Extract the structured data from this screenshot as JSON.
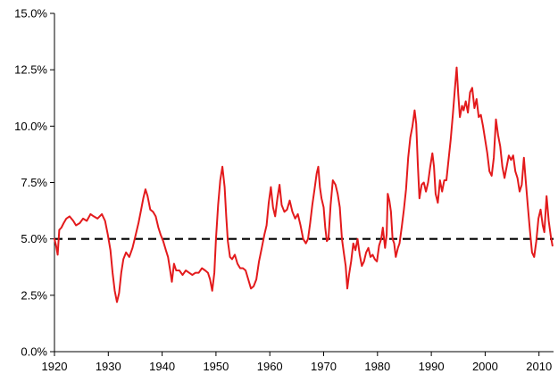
{
  "chart_data": {
    "type": "line",
    "title": "",
    "xlabel": "",
    "ylabel": "",
    "xlim": [
      1920,
      2012.7
    ],
    "ylim": [
      0,
      15
    ],
    "grid": false,
    "legend": "none",
    "x_ticks": [
      1920,
      1930,
      1940,
      1950,
      1960,
      1970,
      1980,
      1990,
      2000,
      2010
    ],
    "x_tick_labels": [
      "1920",
      "1930",
      "1940",
      "1950",
      "1960",
      "1970",
      "1980",
      "1990",
      "2000",
      "2010"
    ],
    "y_ticks": [
      0,
      2.5,
      5,
      7.5,
      10,
      12.5,
      15
    ],
    "y_tick_labels": [
      "0.0%",
      "2.5%",
      "5.0%",
      "7.5%",
      "10.0%",
      "12.5%",
      "15.0%"
    ],
    "reference_line": {
      "y": 5.0,
      "style": "dashed",
      "color": "#000000"
    },
    "series": [
      {
        "color": "#e31a1c",
        "points": [
          [
            1920.0,
            5.0
          ],
          [
            1920.3,
            4.7
          ],
          [
            1920.6,
            4.3
          ],
          [
            1920.9,
            5.4
          ],
          [
            1921.3,
            5.5
          ],
          [
            1921.7,
            5.7
          ],
          [
            1922.2,
            5.9
          ],
          [
            1922.8,
            6.0
          ],
          [
            1923.5,
            5.8
          ],
          [
            1924.0,
            5.6
          ],
          [
            1924.7,
            5.7
          ],
          [
            1925.3,
            5.9
          ],
          [
            1926.0,
            5.8
          ],
          [
            1926.7,
            6.1
          ],
          [
            1927.3,
            6.0
          ],
          [
            1928.0,
            5.9
          ],
          [
            1928.8,
            6.1
          ],
          [
            1929.4,
            5.8
          ],
          [
            1929.9,
            5.2
          ],
          [
            1930.4,
            4.5
          ],
          [
            1930.8,
            3.5
          ],
          [
            1931.2,
            2.7
          ],
          [
            1931.6,
            2.2
          ],
          [
            1932.0,
            2.6
          ],
          [
            1932.4,
            3.5
          ],
          [
            1932.8,
            4.1
          ],
          [
            1933.3,
            4.4
          ],
          [
            1933.9,
            4.2
          ],
          [
            1934.5,
            4.6
          ],
          [
            1935.1,
            5.2
          ],
          [
            1935.6,
            5.7
          ],
          [
            1936.1,
            6.3
          ],
          [
            1936.5,
            6.8
          ],
          [
            1936.9,
            7.2
          ],
          [
            1937.3,
            6.9
          ],
          [
            1937.8,
            6.3
          ],
          [
            1938.3,
            6.2
          ],
          [
            1938.8,
            6.0
          ],
          [
            1939.3,
            5.5
          ],
          [
            1939.7,
            5.2
          ],
          [
            1940.2,
            4.9
          ],
          [
            1940.7,
            4.5
          ],
          [
            1941.1,
            4.2
          ],
          [
            1941.5,
            3.6
          ],
          [
            1941.8,
            3.1
          ],
          [
            1942.2,
            3.9
          ],
          [
            1942.6,
            3.6
          ],
          [
            1943.2,
            3.6
          ],
          [
            1943.8,
            3.4
          ],
          [
            1944.4,
            3.6
          ],
          [
            1945.0,
            3.5
          ],
          [
            1945.6,
            3.4
          ],
          [
            1946.2,
            3.5
          ],
          [
            1946.8,
            3.5
          ],
          [
            1947.4,
            3.7
          ],
          [
            1948.0,
            3.6
          ],
          [
            1948.5,
            3.5
          ],
          [
            1948.9,
            3.2
          ],
          [
            1949.3,
            2.7
          ],
          [
            1949.7,
            3.5
          ],
          [
            1950.0,
            5.0
          ],
          [
            1950.4,
            6.5
          ],
          [
            1950.8,
            7.6
          ],
          [
            1951.2,
            8.2
          ],
          [
            1951.6,
            7.3
          ],
          [
            1951.9,
            6.0
          ],
          [
            1952.2,
            4.9
          ],
          [
            1952.6,
            4.2
          ],
          [
            1953.0,
            4.1
          ],
          [
            1953.5,
            4.3
          ],
          [
            1954.0,
            3.9
          ],
          [
            1954.5,
            3.7
          ],
          [
            1955.0,
            3.7
          ],
          [
            1955.5,
            3.6
          ],
          [
            1956.0,
            3.2
          ],
          [
            1956.5,
            2.8
          ],
          [
            1957.0,
            2.9
          ],
          [
            1957.5,
            3.2
          ],
          [
            1958.0,
            4.0
          ],
          [
            1958.5,
            4.6
          ],
          [
            1959.0,
            5.2
          ],
          [
            1959.4,
            5.6
          ],
          [
            1959.8,
            6.6
          ],
          [
            1960.2,
            7.3
          ],
          [
            1960.6,
            6.4
          ],
          [
            1961.0,
            6.0
          ],
          [
            1961.4,
            6.8
          ],
          [
            1961.8,
            7.4
          ],
          [
            1962.2,
            6.5
          ],
          [
            1962.7,
            6.2
          ],
          [
            1963.2,
            6.3
          ],
          [
            1963.7,
            6.7
          ],
          [
            1964.2,
            6.2
          ],
          [
            1964.7,
            5.9
          ],
          [
            1965.2,
            6.1
          ],
          [
            1965.7,
            5.6
          ],
          [
            1966.2,
            5.0
          ],
          [
            1966.7,
            4.8
          ],
          [
            1967.1,
            5.0
          ],
          [
            1967.5,
            5.7
          ],
          [
            1967.9,
            6.5
          ],
          [
            1968.3,
            7.2
          ],
          [
            1968.7,
            7.9
          ],
          [
            1969.0,
            8.2
          ],
          [
            1969.3,
            7.3
          ],
          [
            1969.6,
            6.8
          ],
          [
            1970.0,
            6.4
          ],
          [
            1970.3,
            5.5
          ],
          [
            1970.6,
            4.9
          ],
          [
            1970.9,
            5.0
          ],
          [
            1971.3,
            6.5
          ],
          [
            1971.7,
            7.6
          ],
          [
            1972.2,
            7.4
          ],
          [
            1972.6,
            7.0
          ],
          [
            1973.0,
            6.4
          ],
          [
            1973.4,
            5.0
          ],
          [
            1973.8,
            4.3
          ],
          [
            1974.1,
            3.8
          ],
          [
            1974.4,
            2.8
          ],
          [
            1974.7,
            3.4
          ],
          [
            1975.1,
            4.0
          ],
          [
            1975.5,
            4.8
          ],
          [
            1975.9,
            4.5
          ],
          [
            1976.3,
            5.0
          ],
          [
            1976.7,
            4.3
          ],
          [
            1977.1,
            3.8
          ],
          [
            1977.5,
            4.0
          ],
          [
            1977.9,
            4.4
          ],
          [
            1978.3,
            4.6
          ],
          [
            1978.7,
            4.2
          ],
          [
            1979.1,
            4.3
          ],
          [
            1979.5,
            4.1
          ],
          [
            1979.9,
            4.0
          ],
          [
            1980.3,
            4.7
          ],
          [
            1980.7,
            5.0
          ],
          [
            1981.0,
            5.5
          ],
          [
            1981.4,
            4.6
          ],
          [
            1981.7,
            5.2
          ],
          [
            1981.9,
            7.0
          ],
          [
            1982.2,
            6.7
          ],
          [
            1982.5,
            6.2
          ],
          [
            1982.8,
            5.0
          ],
          [
            1983.1,
            4.8
          ],
          [
            1983.4,
            4.2
          ],
          [
            1983.8,
            4.6
          ],
          [
            1984.1,
            4.8
          ],
          [
            1984.5,
            5.5
          ],
          [
            1984.9,
            6.3
          ],
          [
            1985.3,
            7.2
          ],
          [
            1985.7,
            8.6
          ],
          [
            1986.1,
            9.5
          ],
          [
            1986.5,
            10.0
          ],
          [
            1986.9,
            10.7
          ],
          [
            1987.2,
            10.1
          ],
          [
            1987.5,
            8.3
          ],
          [
            1987.8,
            6.8
          ],
          [
            1988.2,
            7.4
          ],
          [
            1988.6,
            7.5
          ],
          [
            1989.0,
            7.1
          ],
          [
            1989.4,
            7.5
          ],
          [
            1989.8,
            8.2
          ],
          [
            1990.2,
            8.8
          ],
          [
            1990.5,
            8.2
          ],
          [
            1990.8,
            7.0
          ],
          [
            1991.2,
            6.6
          ],
          [
            1991.6,
            7.6
          ],
          [
            1992.0,
            7.1
          ],
          [
            1992.4,
            7.6
          ],
          [
            1992.8,
            7.6
          ],
          [
            1993.2,
            8.5
          ],
          [
            1993.6,
            9.4
          ],
          [
            1994.0,
            10.5
          ],
          [
            1994.4,
            11.7
          ],
          [
            1994.7,
            12.6
          ],
          [
            1995.0,
            11.4
          ],
          [
            1995.3,
            10.4
          ],
          [
            1995.7,
            10.9
          ],
          [
            1996.0,
            10.7
          ],
          [
            1996.4,
            11.1
          ],
          [
            1996.8,
            10.6
          ],
          [
            1997.2,
            11.5
          ],
          [
            1997.6,
            11.7
          ],
          [
            1998.0,
            10.8
          ],
          [
            1998.4,
            11.2
          ],
          [
            1998.8,
            10.4
          ],
          [
            1999.2,
            10.5
          ],
          [
            1999.6,
            10.0
          ],
          [
            2000.0,
            9.4
          ],
          [
            2000.4,
            8.8
          ],
          [
            2000.8,
            8.0
          ],
          [
            2001.2,
            7.8
          ],
          [
            2001.6,
            8.6
          ],
          [
            2002.0,
            10.3
          ],
          [
            2002.4,
            9.6
          ],
          [
            2002.8,
            9.1
          ],
          [
            2003.2,
            8.2
          ],
          [
            2003.6,
            7.7
          ],
          [
            2004.0,
            8.2
          ],
          [
            2004.4,
            8.7
          ],
          [
            2004.8,
            8.5
          ],
          [
            2005.2,
            8.7
          ],
          [
            2005.6,
            8.0
          ],
          [
            2006.0,
            7.7
          ],
          [
            2006.4,
            7.1
          ],
          [
            2006.8,
            7.4
          ],
          [
            2007.2,
            8.6
          ],
          [
            2007.5,
            7.7
          ],
          [
            2007.9,
            6.5
          ],
          [
            2008.3,
            5.4
          ],
          [
            2008.7,
            4.4
          ],
          [
            2009.1,
            4.2
          ],
          [
            2009.5,
            4.9
          ],
          [
            2009.9,
            5.9
          ],
          [
            2010.3,
            6.3
          ],
          [
            2010.7,
            5.6
          ],
          [
            2011.0,
            5.3
          ],
          [
            2011.4,
            6.9
          ],
          [
            2011.8,
            5.8
          ],
          [
            2012.2,
            5.1
          ],
          [
            2012.5,
            4.7
          ]
        ]
      }
    ]
  }
}
